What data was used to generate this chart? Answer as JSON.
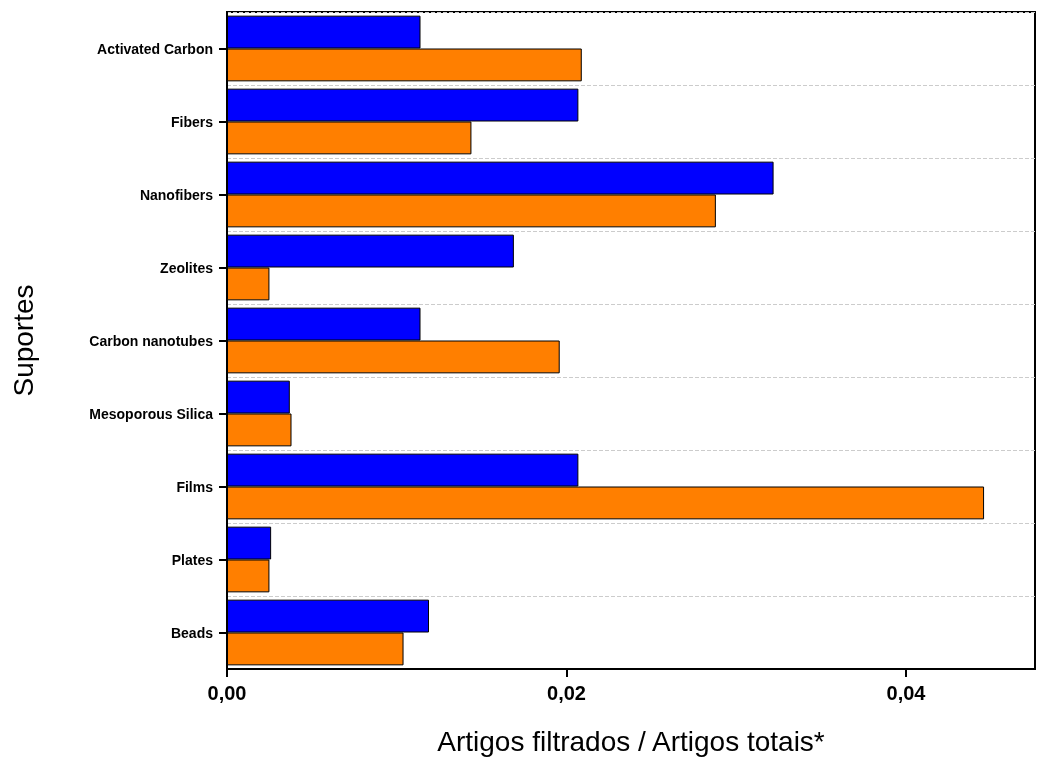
{
  "chart_data": {
    "type": "bar",
    "orientation": "horizontal",
    "xlabel": "Artigos filtrados / Artigos totais*",
    "ylabel": "Suportes",
    "categories": [
      "Activated Carbon",
      "Fibers",
      "Nanofibers",
      "Zeolites",
      "Carbon nanotubes",
      "Mesoporous Silica",
      "Films",
      "Plates",
      "Beads"
    ],
    "series": [
      {
        "color": "#0000ff",
        "values": [
          0.0114,
          0.0207,
          0.0322,
          0.0169,
          0.0114,
          0.0037,
          0.0207,
          0.0026,
          0.0119
        ]
      },
      {
        "color": "#ff7f00",
        "values": [
          0.0209,
          0.0144,
          0.0288,
          0.0025,
          0.0196,
          0.0038,
          0.0446,
          0.0025,
          0.0104
        ]
      }
    ],
    "xlim": [
      0,
      0.0476
    ],
    "xticks": [
      {
        "value": 0,
        "label": "0,00"
      },
      {
        "value": 0.02,
        "label": "0,02"
      },
      {
        "value": 0.04,
        "label": "0,04"
      }
    ],
    "grid": "y",
    "line_style": "dashed"
  }
}
